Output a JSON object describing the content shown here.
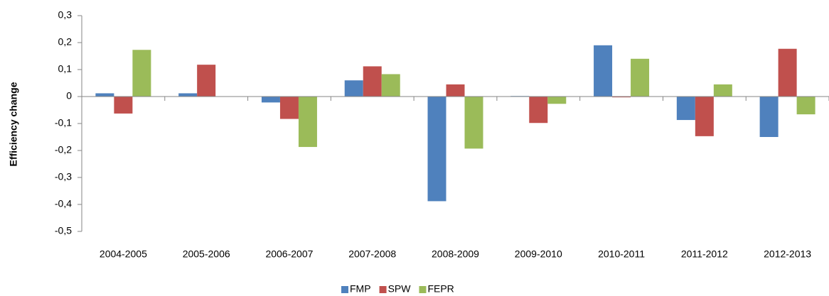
{
  "chart_data": {
    "type": "bar",
    "ylabel": "Efficiency change",
    "categories": [
      "2004-2005",
      "2005-2006",
      "2006-2007",
      "2007-2008",
      "2008-2009",
      "2009-2010",
      "2010-2011",
      "2011-2012",
      "2012-2013"
    ],
    "series": [
      {
        "name": "FMP",
        "color": "#4f81bd",
        "values": [
          0.012,
          0.012,
          -0.022,
          0.06,
          -0.388,
          0.002,
          0.19,
          -0.087,
          -0.15
        ]
      },
      {
        "name": "SPW",
        "color": "#c0504d",
        "values": [
          -0.063,
          0.118,
          -0.083,
          0.112,
          0.045,
          -0.098,
          -0.003,
          -0.147,
          0.177
        ]
      },
      {
        "name": "FEPR",
        "color": "#9bbb59",
        "values": [
          0.173,
          0.001,
          -0.187,
          0.083,
          -0.193,
          -0.027,
          0.14,
          0.045,
          -0.066
        ]
      }
    ],
    "ylim": [
      -0.5,
      0.3
    ],
    "yticks": [
      {
        "value": -0.5,
        "label": "-0,5"
      },
      {
        "value": -0.4,
        "label": "-0,4"
      },
      {
        "value": -0.3,
        "label": "-0,3"
      },
      {
        "value": -0.2,
        "label": "-0,2"
      },
      {
        "value": -0.1,
        "label": "-0,1"
      },
      0,
      {
        "value": 0.1,
        "label": "0,1"
      },
      {
        "value": 0.2,
        "label": "0,2"
      },
      {
        "value": 0.3,
        "label": "0,3"
      }
    ],
    "legend": "bottom"
  }
}
